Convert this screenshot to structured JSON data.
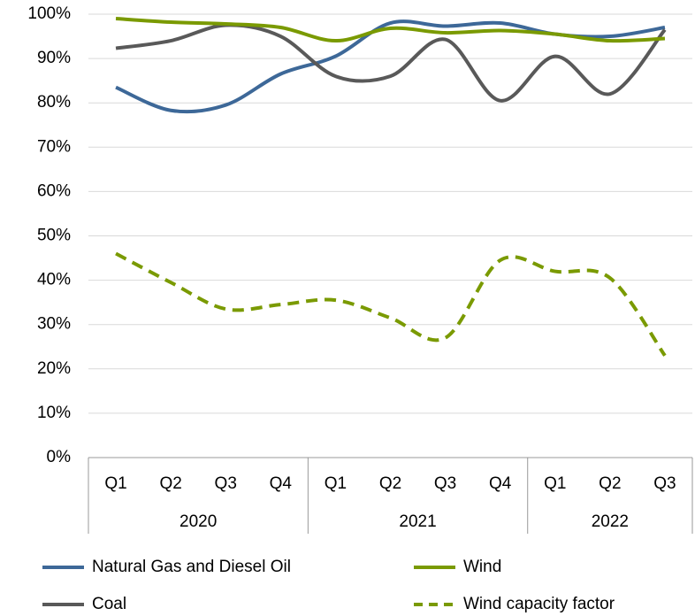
{
  "chart_data": {
    "type": "line",
    "groups": [
      {
        "label": "2020",
        "categories": [
          "Q1",
          "Q2",
          "Q3",
          "Q4"
        ]
      },
      {
        "label": "2021",
        "categories": [
          "Q1",
          "Q2",
          "Q3",
          "Q4"
        ]
      },
      {
        "label": "2022",
        "categories": [
          "Q1",
          "Q2",
          "Q3"
        ]
      }
    ],
    "series": [
      {
        "name": "Natural Gas and Diesel Oil",
        "color": "#3d6898",
        "dashed": false,
        "values": [
          83.5,
          78.3,
          79.5,
          86.5,
          90.5,
          98,
          97.3,
          98,
          95.5,
          95,
          97
        ]
      },
      {
        "name": "Coal",
        "color": "#595959",
        "dashed": false,
        "values": [
          92.3,
          94,
          97.5,
          95,
          86,
          86,
          94.3,
          80.5,
          90.5,
          82,
          96.5
        ]
      },
      {
        "name": "Wind",
        "color": "#7a9a01",
        "dashed": false,
        "values": [
          99,
          98.2,
          97.8,
          97,
          94,
          96.8,
          95.8,
          96.3,
          95.5,
          94,
          94.5
        ]
      },
      {
        "name": "Wind capacity factor",
        "color": "#7a9a01",
        "dashed": true,
        "values": [
          46,
          39.5,
          33.5,
          34.5,
          35.5,
          31.5,
          27,
          44.5,
          42,
          40.5,
          23
        ]
      }
    ],
    "ylim": [
      0,
      100
    ],
    "yticks": [
      {
        "value": 0,
        "label": "0%"
      },
      {
        "value": 10,
        "label": "10%"
      },
      {
        "value": 20,
        "label": "20%"
      },
      {
        "value": 30,
        "label": "30%"
      },
      {
        "value": 40,
        "label": "40%"
      },
      {
        "value": 50,
        "label": "50%"
      },
      {
        "value": 60,
        "label": "60%"
      },
      {
        "value": 70,
        "label": "70%"
      },
      {
        "value": 80,
        "label": "80%"
      },
      {
        "value": 90,
        "label": "90%"
      },
      {
        "value": 100,
        "label": "100%"
      }
    ],
    "grid": true,
    "legend": "bottom"
  }
}
